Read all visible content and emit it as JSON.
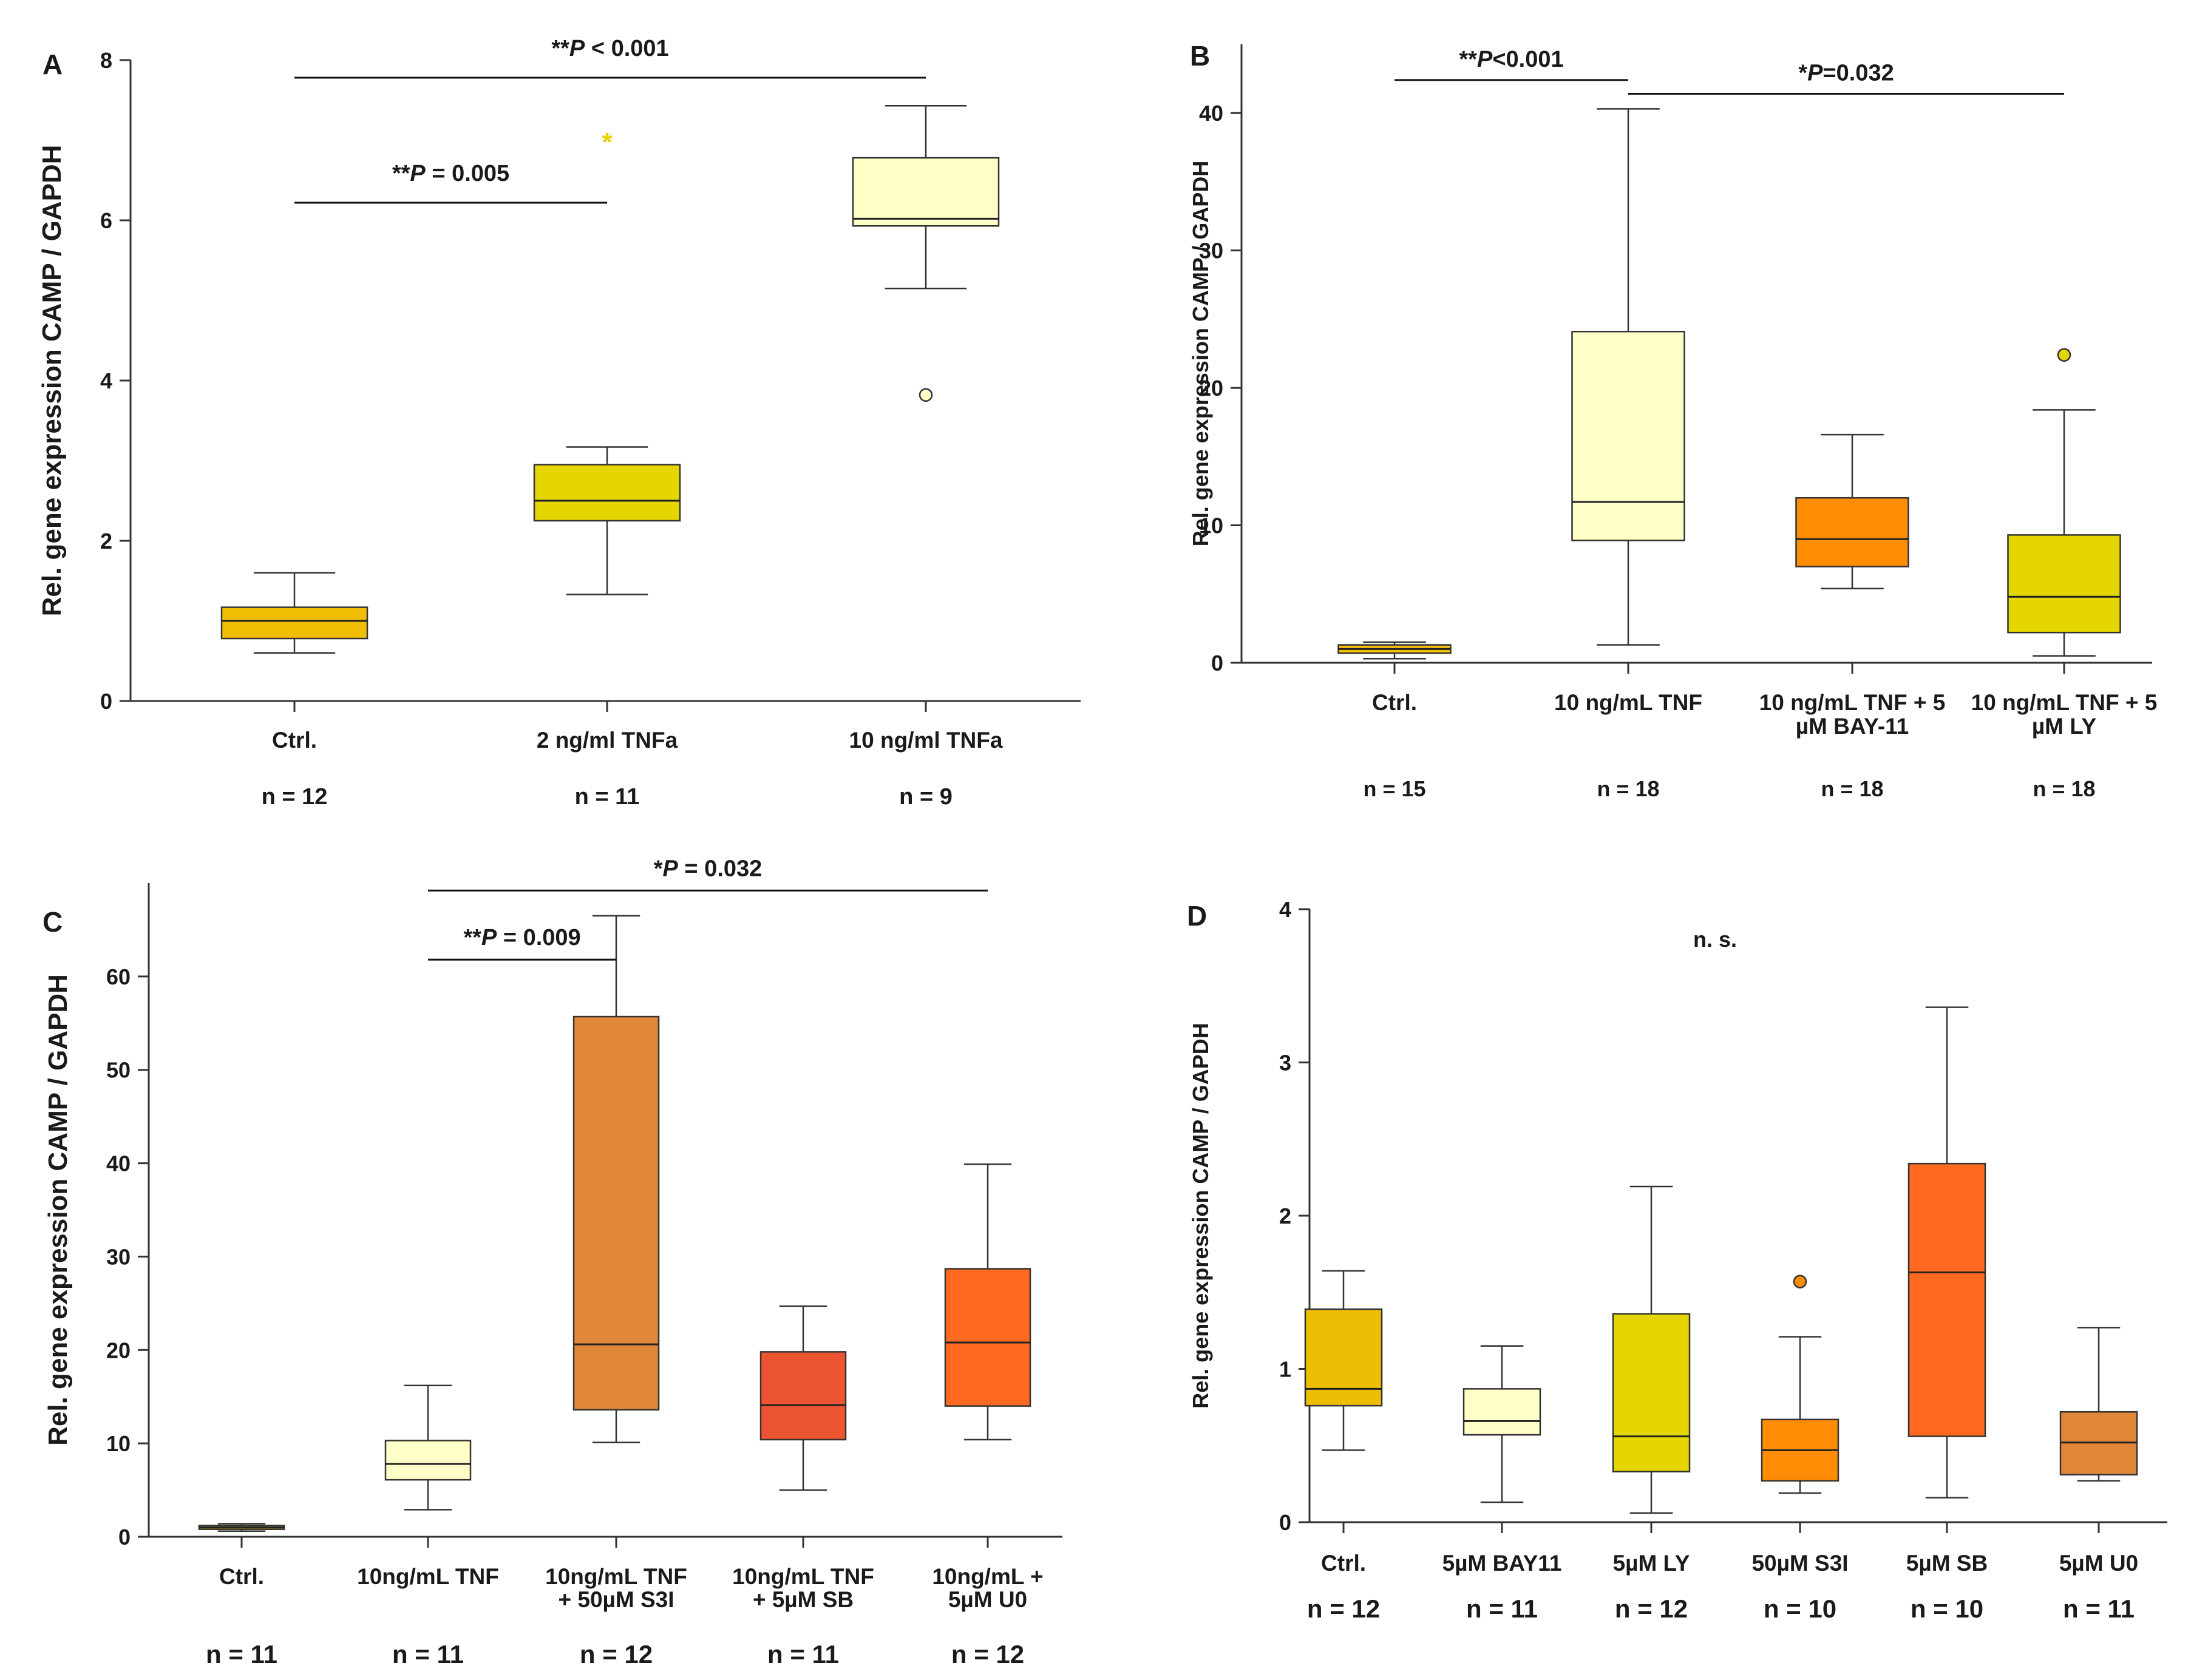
{
  "figure": "Relative CAMP gene expression (4-panel box plot figure)",
  "chart_data": [
    {
      "panel": "A",
      "type": "box",
      "ylabel": "Rel. gene expression CAMP / GAPDH",
      "ylim": [
        0,
        8
      ],
      "yticks": [
        "0",
        "2",
        "4",
        "6",
        "8"
      ],
      "categories": [
        "Ctrl.",
        "2 ng/ml TNFa",
        "10 ng/ml TNFa"
      ],
      "n_labels": [
        "n = 12",
        "n = 11",
        "n = 9"
      ],
      "colors": [
        "#F2BE05",
        "#E5D600",
        "#FFFFC8"
      ],
      "boxes": [
        {
          "whisker_low": 0.6,
          "q1": 0.78,
          "median": 1.0,
          "q3": 1.17,
          "whisker_high": 1.6
        },
        {
          "whisker_low": 1.33,
          "q1": 2.25,
          "median": 2.5,
          "q3": 2.95,
          "whisker_high": 3.17
        },
        {
          "whisker_low": 5.15,
          "q1": 5.93,
          "median": 6.02,
          "q3": 6.78,
          "whisker_high": 7.43
        }
      ],
      "outliers": [
        {
          "group": 1,
          "value": 7.03,
          "marker": "star"
        },
        {
          "group": 2,
          "value": 3.82,
          "marker": "circle"
        }
      ],
      "significance": [
        {
          "from": 0,
          "to": 1,
          "y": 6.22,
          "stars": "**",
          "p": "P",
          "rest": " = 0.005"
        },
        {
          "from": 0,
          "to": 2,
          "y": 7.78,
          "stars": "**",
          "p": "P",
          "rest": " < 0.001"
        }
      ]
    },
    {
      "panel": "B",
      "type": "box",
      "ylabel": "Rel. gene expression CAMP / GAPDH",
      "ylim": [
        0,
        45
      ],
      "yticks": [
        "0",
        "10",
        "20",
        "30",
        "40"
      ],
      "categories": [
        [
          "Ctrl."
        ],
        [
          "10 ng/mL TNF"
        ],
        [
          "10 ng/mL TNF + 5",
          "µM BAY-11"
        ],
        [
          "10 ng/mL TNF + 5",
          "µM LY"
        ]
      ],
      "n_labels": [
        "n = 15",
        "n = 18",
        "n = 18",
        "n = 18"
      ],
      "colors": [
        "#F2BE05",
        "#FFFFC8",
        "#FF8C05",
        "#E5D600"
      ],
      "boxes": [
        {
          "whisker_low": 0.3,
          "q1": 0.7,
          "median": 1.0,
          "q3": 1.3,
          "whisker_high": 1.5
        },
        {
          "whisker_low": 1.3,
          "q1": 8.9,
          "median": 11.7,
          "q3": 24.1,
          "whisker_high": 40.3
        },
        {
          "whisker_low": 5.4,
          "q1": 7.0,
          "median": 9.0,
          "q3": 12.0,
          "whisker_high": 16.6
        },
        {
          "whisker_low": 0.5,
          "q1": 2.2,
          "median": 4.8,
          "q3": 9.3,
          "whisker_high": 18.4
        }
      ],
      "outliers": [
        {
          "group": 3,
          "value": 22.4,
          "marker": "circle"
        }
      ],
      "significance": [
        {
          "from": 0,
          "to": 1,
          "y": 42.4,
          "stars": "**",
          "p": "P",
          "rest": "<0.001"
        },
        {
          "from": 1,
          "to": 3,
          "y": 41.4,
          "stars": "*",
          "p": "P",
          "rest": "=0.032"
        }
      ]
    },
    {
      "panel": "C",
      "type": "box",
      "ylabel": "Rel. gene expression CAMP / GAPDH",
      "ylim": [
        0,
        70
      ],
      "yticks": [
        "0",
        "10",
        "20",
        "30",
        "40",
        "50",
        "60"
      ],
      "categories": [
        [
          "Ctrl."
        ],
        [
          "10ng/mL TNF"
        ],
        [
          "10ng/mL TNF",
          "+ 50µM S3I"
        ],
        [
          "10ng/mL TNF",
          "+ 5µM SB"
        ],
        [
          "10ng/mL +",
          "5µM U0"
        ]
      ],
      "n_labels": [
        "n = 11",
        "n = 11",
        "n = 12",
        "n = 11",
        "n = 12"
      ],
      "colors": [
        "#F2BE05",
        "#FFFFC8",
        "#E1873A",
        "#ED5532",
        "#FF6A20"
      ],
      "boxes": [
        {
          "whisker_low": 0.6,
          "q1": 0.8,
          "median": 1.0,
          "q3": 1.2,
          "whisker_high": 1.4
        },
        {
          "whisker_low": 2.9,
          "q1": 6.1,
          "median": 7.8,
          "q3": 10.3,
          "whisker_high": 16.2
        },
        {
          "whisker_low": 10.1,
          "q1": 13.6,
          "median": 20.6,
          "q3": 55.7,
          "whisker_high": 66.5
        },
        {
          "whisker_low": 5.0,
          "q1": 10.4,
          "median": 14.1,
          "q3": 19.8,
          "whisker_high": 24.7
        },
        {
          "whisker_low": 10.4,
          "q1": 14.0,
          "median": 20.8,
          "q3": 28.7,
          "whisker_high": 39.9
        }
      ],
      "outliers": [],
      "significance": [
        {
          "from": 1,
          "to": 2,
          "y": 61.8,
          "stars": "**",
          "p": "P",
          "rest": " = 0.009"
        },
        {
          "from": 1,
          "to": 4,
          "y": 69.2,
          "stars": "*",
          "p": "P",
          "rest": " = 0.032"
        }
      ]
    },
    {
      "panel": "D",
      "type": "box",
      "ylabel": "Rel. gene expression CAMP / GAPDH",
      "ylim": [
        0,
        4
      ],
      "yticks": [
        "0",
        "1",
        "2",
        "3",
        "4"
      ],
      "categories": [
        [
          "Ctrl."
        ],
        [
          "5µM BAY11"
        ],
        [
          "5µM LY"
        ],
        [
          "50µM S3I"
        ],
        [
          "5µM SB"
        ],
        [
          "5µM U0"
        ]
      ],
      "n_labels": [
        "n = 12",
        "n = 11",
        "n = 12",
        "n = 10",
        "n = 10",
        "n = 11"
      ],
      "colors": [
        "#EEBD05",
        "#FFFFC8",
        "#E5D600",
        "#FF8C05",
        "#FF6A20",
        "#E1873A"
      ],
      "boxes": [
        {
          "whisker_low": 0.47,
          "q1": 0.76,
          "median": 0.87,
          "q3": 1.39,
          "whisker_high": 1.64
        },
        {
          "whisker_low": 0.13,
          "q1": 0.57,
          "median": 0.66,
          "q3": 0.87,
          "whisker_high": 1.15
        },
        {
          "whisker_low": 0.06,
          "q1": 0.33,
          "median": 0.56,
          "q3": 1.36,
          "whisker_high": 2.19
        },
        {
          "whisker_low": 0.19,
          "q1": 0.27,
          "median": 0.47,
          "q3": 0.67,
          "whisker_high": 1.21
        },
        {
          "whisker_low": 0.16,
          "q1": 0.56,
          "median": 1.63,
          "q3": 2.34,
          "whisker_high": 3.36
        },
        {
          "whisker_low": 0.27,
          "q1": 0.31,
          "median": 0.52,
          "q3": 0.72,
          "whisker_high": 1.27
        }
      ],
      "outliers": [
        {
          "group": 3,
          "value": 1.57,
          "marker": "circle"
        }
      ],
      "annotation": "n. s.",
      "significance": []
    }
  ]
}
